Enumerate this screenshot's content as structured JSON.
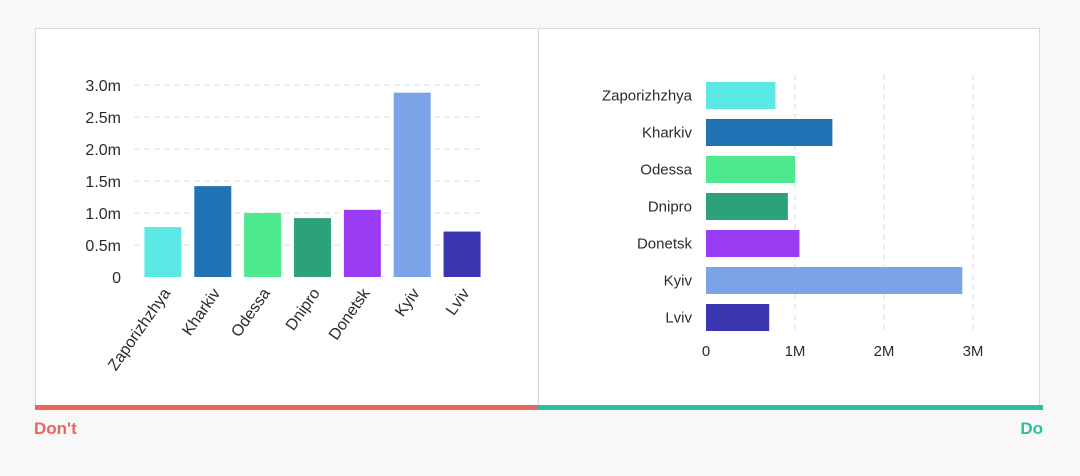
{
  "captions": {
    "dont": "Don't",
    "do": "Do"
  },
  "colors": {
    "dont": "#e8665b",
    "do": "#2bbfa0",
    "grid": "#dcdcdc",
    "text": "#2b2b2b"
  },
  "chart_data": [
    {
      "type": "bar",
      "orientation": "vertical",
      "title": "",
      "xlabel": "",
      "ylabel": "",
      "categories": [
        "Zaporizhzhya",
        "Kharkiv",
        "Odessa",
        "Dnipro",
        "Donetsk",
        "Kyiv",
        "Lviv"
      ],
      "values": [
        0.78,
        1.42,
        1.0,
        0.92,
        1.05,
        2.88,
        0.71
      ],
      "ylim": [
        0,
        3.0
      ],
      "yticks": [
        0,
        0.5,
        1.0,
        1.5,
        2.0,
        2.5,
        3.0
      ],
      "ytick_labels": [
        "0",
        "0.5m",
        "1.0m",
        "1.5m",
        "2.0m",
        "2.5m",
        "3.0m"
      ],
      "colors": [
        "#5ce8e4",
        "#1f73b4",
        "#4ee88e",
        "#2da279",
        "#9b3cf5",
        "#7ba3e8",
        "#3a36b2"
      ],
      "grid": true,
      "tick_label_rotation": "diagonal"
    },
    {
      "type": "bar",
      "orientation": "horizontal",
      "title": "",
      "xlabel": "",
      "ylabel": "",
      "categories": [
        "Zaporizhzhya",
        "Kharkiv",
        "Odessa",
        "Dnipro",
        "Donetsk",
        "Kyiv",
        "Lviv"
      ],
      "values": [
        0.78,
        1.42,
        1.0,
        0.92,
        1.05,
        2.88,
        0.71
      ],
      "xlim": [
        0,
        3.0
      ],
      "xticks": [
        0,
        1,
        2,
        3
      ],
      "xtick_labels": [
        "0",
        "1M",
        "2M",
        "3M"
      ],
      "colors": [
        "#5ce8e4",
        "#1f73b4",
        "#4ee88e",
        "#2da279",
        "#9b3cf5",
        "#7ba3e8",
        "#3a36b2"
      ],
      "grid": true,
      "tick_label_rotation": "none"
    }
  ]
}
